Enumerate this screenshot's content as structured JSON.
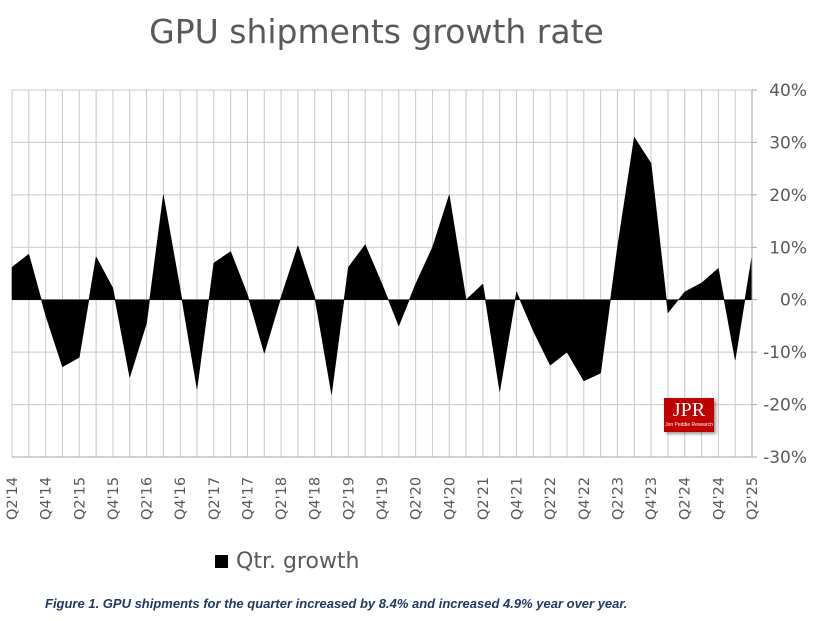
{
  "chart_data": {
    "type": "area",
    "title": "GPU shipments growth rate",
    "ylim": [
      -30,
      40
    ],
    "ytick_step": 10,
    "ytick_suffix": "%",
    "series": [
      {
        "name": "Qtr. growth",
        "color": "#000000",
        "values": [
          6.2,
          8.7,
          -3,
          -12.8,
          -11,
          8.2,
          2.2,
          -14.8,
          -4.5,
          20,
          2,
          -17,
          7,
          9.2,
          1,
          -10.2,
          0.5,
          10.3,
          0.5,
          -18,
          6.2,
          10.5,
          3,
          -5,
          3,
          10,
          20,
          0,
          3,
          -17.5,
          1.5,
          -6,
          -12.5,
          -10,
          -15.5,
          -14,
          10,
          31,
          26,
          -2.5,
          1.5,
          3.2,
          6,
          -11.5,
          8.4
        ]
      }
    ],
    "categories": [
      "Q2'14",
      "Q3'14",
      "Q4'14",
      "Q1'15",
      "Q2'15",
      "Q3'15",
      "Q4'15",
      "Q1'16",
      "Q2'16",
      "Q3'16",
      "Q4'16",
      "Q1'17",
      "Q2'17",
      "Q3'17",
      "Q4'17",
      "Q1'18",
      "Q2'18",
      "Q3'18",
      "Q4'18",
      "Q1'19",
      "Q2'19",
      "Q3'19",
      "Q4'19",
      "Q1'20",
      "Q2'20",
      "Q3'20",
      "Q4'20",
      "Q1'21",
      "Q2'21",
      "Q3'21",
      "Q4'21",
      "Q1'22",
      "Q2'22",
      "Q3'22",
      "Q4'22",
      "Q1'23",
      "Q2'23",
      "Q3'23",
      "Q4'23",
      "Q1'24",
      "Q2'24",
      "Q3'24",
      "Q4'24",
      "Q1'25",
      "Q2'25"
    ],
    "x_tick_labels": [
      "Q2'14",
      "Q4'14",
      "Q2'15",
      "Q4'15",
      "Q2'16",
      "Q4'16",
      "Q2'17",
      "Q4'17",
      "Q2'18",
      "Q4'18",
      "Q2'19",
      "Q4'19",
      "Q2'20",
      "Q4'20",
      "Q2'21",
      "Q4'21",
      "Q2'22",
      "Q4'22",
      "Q2'23",
      "Q4'23",
      "Q2'24",
      "Q4'24",
      "Q2'25"
    ],
    "legend": "Qtr. growth",
    "legend_position": "bottom",
    "grid": true
  },
  "caption": "Figure 1. GPU shipments for the quarter increased by 8.4% and increased 4.9% year over year.",
  "logo": {
    "main": "JPR",
    "sub": "Jon Peddie Research"
  }
}
